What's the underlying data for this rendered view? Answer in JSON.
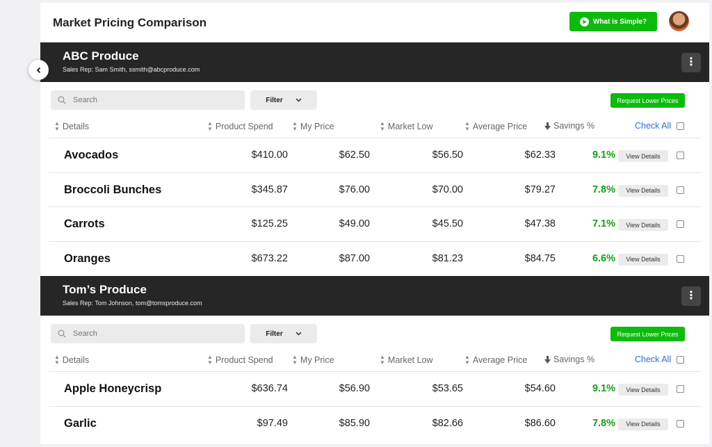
{
  "page_title": "Market Pricing Comparison",
  "header_button": "What is Simple?",
  "colors": {
    "accent_green": "#0dbb0d",
    "savings_green": "#15a015",
    "dark_header": "#262626",
    "link_blue": "#2b6fd6"
  },
  "columns": {
    "details": "Details",
    "product_spend": "Product Spend",
    "my_price": "My Price",
    "market_low": "Market Low",
    "average_price": "Average Price",
    "savings": "Savings %",
    "check_all": "Check All"
  },
  "controls": {
    "search_placeholder": "Search",
    "filter_label": "Filter",
    "request_label": "Request Lower Prices",
    "view_label": "View Details"
  },
  "vendors": [
    {
      "name": "ABC Produce",
      "rep": "Sales Rep: Sam Smith, ssmith@abcproduce.com",
      "rows": [
        {
          "name": "Avocados",
          "spend": "$410.00",
          "my": "$62.50",
          "low": "$56.50",
          "avg": "$62.33",
          "savings": "9.1%"
        },
        {
          "name": "Broccoli Bunches",
          "spend": "$345.87",
          "my": "$76.00",
          "low": "$70.00",
          "avg": "$79.27",
          "savings": "7.8%"
        },
        {
          "name": "Carrots",
          "spend": "$125.25",
          "my": "$49.00",
          "low": "$45.50",
          "avg": "$47.38",
          "savings": "7.1%"
        },
        {
          "name": "Oranges",
          "spend": "$673.22",
          "my": "$87.00",
          "low": "$81.23",
          "avg": "$84.75",
          "savings": "6.6%"
        }
      ]
    },
    {
      "name": "Tom’s Produce",
      "rep": "Sales Rep: Tom Johnson, tom@tomsproduce.com",
      "rows": [
        {
          "name": "Apple Honeycrisp",
          "spend": "$636.74",
          "my": "$56.90",
          "low": "$53.65",
          "avg": "$54.60",
          "savings": "9.1%"
        },
        {
          "name": "Garlic",
          "spend": "$97.49",
          "my": "$85.90",
          "low": "$82.66",
          "avg": "$86.60",
          "savings": "7.8%"
        }
      ]
    }
  ]
}
